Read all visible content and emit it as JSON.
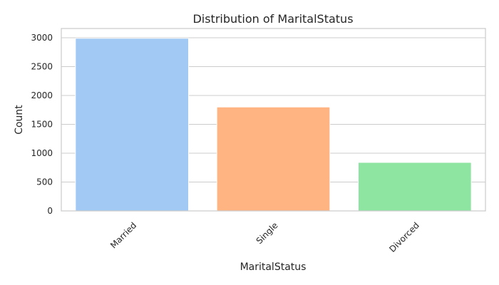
{
  "chart_data": {
    "type": "bar",
    "title": "Distribution of MaritalStatus",
    "xlabel": "MaritalStatus",
    "ylabel": "Count",
    "categories": [
      "Married",
      "Single",
      "Divorced"
    ],
    "values": [
      2990,
      1800,
      840
    ],
    "colors": [
      "#a1c9f4",
      "#ffb482",
      "#8de5a1"
    ],
    "ylim": [
      0,
      3160
    ],
    "yticks": [
      0,
      500,
      1000,
      1500,
      2000,
      2500,
      3000
    ],
    "grid": "y-only",
    "legend": "none"
  }
}
